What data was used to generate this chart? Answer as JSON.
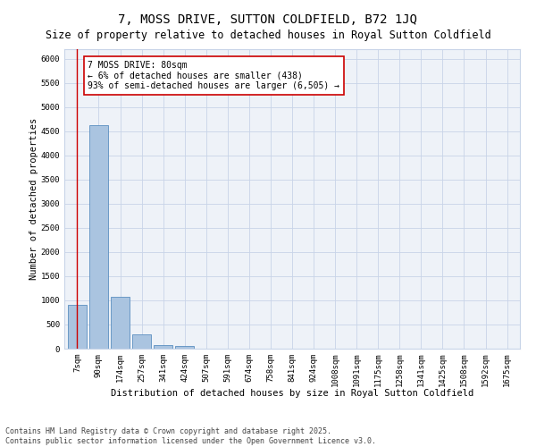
{
  "title": "7, MOSS DRIVE, SUTTON COLDFIELD, B72 1JQ",
  "subtitle": "Size of property relative to detached houses in Royal Sutton Coldfield",
  "xlabel": "Distribution of detached houses by size in Royal Sutton Coldfield",
  "ylabel": "Number of detached properties",
  "categories": [
    "7sqm",
    "90sqm",
    "174sqm",
    "257sqm",
    "341sqm",
    "424sqm",
    "507sqm",
    "591sqm",
    "674sqm",
    "758sqm",
    "841sqm",
    "924sqm",
    "1008sqm",
    "1091sqm",
    "1175sqm",
    "1258sqm",
    "1341sqm",
    "1425sqm",
    "1508sqm",
    "1592sqm",
    "1675sqm"
  ],
  "values": [
    900,
    4620,
    1080,
    305,
    80,
    60,
    0,
    0,
    0,
    0,
    0,
    0,
    0,
    0,
    0,
    0,
    0,
    0,
    0,
    0,
    0
  ],
  "bar_color": "#aac4e0",
  "bar_edge_color": "#5b8fc0",
  "vline_x": 0,
  "vline_color": "#cc0000",
  "annotation_line1": "7 MOSS DRIVE: 80sqm",
  "annotation_line2": "← 6% of detached houses are smaller (438)",
  "annotation_line3": "93% of semi-detached houses are larger (6,505) →",
  "annotation_box_color": "#ffffff",
  "annotation_box_edge_color": "#cc0000",
  "annotation_fontsize": 7.0,
  "ylim": [
    0,
    6200
  ],
  "yticks": [
    0,
    500,
    1000,
    1500,
    2000,
    2500,
    3000,
    3500,
    4000,
    4500,
    5000,
    5500,
    6000
  ],
  "grid_color": "#c8d4e8",
  "bg_color": "#eef2f8",
  "title_fontsize": 10,
  "subtitle_fontsize": 8.5,
  "xlabel_fontsize": 7.5,
  "ylabel_fontsize": 7.5,
  "tick_fontsize": 6.5,
  "footer_line1": "Contains HM Land Registry data © Crown copyright and database right 2025.",
  "footer_line2": "Contains public sector information licensed under the Open Government Licence v3.0.",
  "footer_fontsize": 6.0
}
